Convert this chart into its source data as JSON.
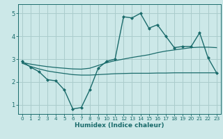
{
  "xlabel": "Humidex (Indice chaleur)",
  "ylabel": "",
  "bg_color": "#cce8e8",
  "grid_color": "#aacccc",
  "line_color": "#1a6b6b",
  "xlim": [
    -0.5,
    23.5
  ],
  "ylim": [
    0.6,
    5.4
  ],
  "xticks": [
    0,
    1,
    2,
    3,
    4,
    5,
    6,
    7,
    8,
    9,
    10,
    11,
    12,
    13,
    14,
    15,
    16,
    17,
    18,
    19,
    20,
    21,
    22,
    23
  ],
  "yticks": [
    1,
    2,
    3,
    4,
    5
  ],
  "main_x": [
    0,
    1,
    2,
    3,
    4,
    5,
    6,
    7,
    8,
    9,
    10,
    11,
    12,
    13,
    14,
    15,
    16,
    17,
    18,
    19,
    20,
    21,
    22,
    23
  ],
  "main_y": [
    2.9,
    2.65,
    2.45,
    2.1,
    2.05,
    1.65,
    0.82,
    0.88,
    1.65,
    2.6,
    2.9,
    3.0,
    4.85,
    4.8,
    5.0,
    4.35,
    4.5,
    4.0,
    3.5,
    3.55,
    3.55,
    4.15,
    3.05,
    2.4
  ],
  "trend1_x": [
    0,
    1,
    2,
    3,
    4,
    5,
    6,
    7,
    8,
    9,
    10,
    11,
    12,
    13,
    14,
    15,
    16,
    17,
    18,
    19,
    20,
    21,
    22,
    23
  ],
  "trend1_y": [
    2.85,
    2.78,
    2.72,
    2.67,
    2.63,
    2.6,
    2.57,
    2.56,
    2.6,
    2.72,
    2.84,
    2.93,
    3.0,
    3.07,
    3.13,
    3.19,
    3.28,
    3.35,
    3.4,
    3.45,
    3.5,
    3.52,
    3.52,
    3.5
  ],
  "trend2_x": [
    0,
    1,
    2,
    3,
    4,
    5,
    6,
    7,
    8,
    9,
    10,
    11,
    12,
    13,
    14,
    15,
    16,
    17,
    18,
    19,
    20,
    21,
    22,
    23
  ],
  "trend2_y": [
    2.82,
    2.68,
    2.57,
    2.48,
    2.42,
    2.37,
    2.32,
    2.3,
    2.3,
    2.32,
    2.34,
    2.36,
    2.37,
    2.38,
    2.38,
    2.38,
    2.39,
    2.39,
    2.4,
    2.4,
    2.4,
    2.4,
    2.4,
    2.4
  ]
}
